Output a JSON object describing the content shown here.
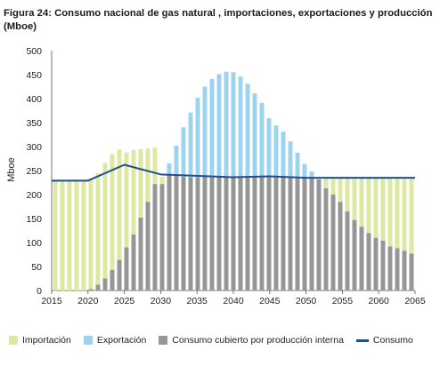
{
  "title": "Figura 24: Consumo nacional de gas natural , importaciones, exportaciones y producción (Mboe)",
  "chart_data": {
    "type": "bar",
    "title": "Figura 24: Consumo nacional de gas natural , importaciones, exportaciones y producción (Mboe)",
    "xlabel": "",
    "ylabel": "Mboe",
    "ylim": [
      0,
      500
    ],
    "xlim": [
      2015,
      2065
    ],
    "yticks": [
      0,
      50,
      100,
      150,
      200,
      250,
      300,
      350,
      400,
      450,
      500
    ],
    "xticks": [
      2015,
      2020,
      2025,
      2030,
      2035,
      2040,
      2045,
      2050,
      2055,
      2060,
      2065
    ],
    "grid": false,
    "legend_position": "bottom",
    "x": [
      2015,
      2016,
      2017,
      2018,
      2019,
      2020,
      2021,
      2022,
      2023,
      2024,
      2025,
      2026,
      2027,
      2028,
      2029,
      2030,
      2031,
      2032,
      2033,
      2034,
      2035,
      2036,
      2037,
      2038,
      2039,
      2040,
      2041,
      2042,
      2043,
      2044,
      2045,
      2046,
      2047,
      2048,
      2049,
      2050,
      2051,
      2052,
      2053,
      2054,
      2055,
      2056,
      2057,
      2058,
      2059,
      2060,
      2061,
      2062,
      2063,
      2064,
      2065
    ],
    "series": [
      {
        "name": "Importación",
        "color": "#dde8a3",
        "values": [
          229,
          229,
          229,
          229,
          229,
          229,
          232,
          241,
          241,
          230,
          198,
          176,
          143,
          111,
          76,
          15,
          0,
          0,
          0,
          0,
          0,
          0,
          0,
          0,
          0,
          0,
          0,
          0,
          0,
          0,
          0,
          0,
          0,
          0,
          0,
          0,
          0,
          0,
          21,
          33,
          50,
          70,
          88,
          101,
          115,
          124,
          130,
          142,
          146,
          151,
          157
        ]
      },
      {
        "name": "Exportación",
        "color": "#9dd3ee",
        "values": [
          0,
          0,
          0,
          0,
          0,
          0,
          0,
          0,
          0,
          0,
          0,
          0,
          0,
          0,
          0,
          0,
          25,
          63,
          103,
          135,
          166,
          188,
          205,
          215,
          220,
          219,
          210,
          195,
          175,
          155,
          123,
          108,
          95,
          75,
          51,
          28,
          12,
          0,
          0,
          0,
          0,
          0,
          0,
          0,
          0,
          0,
          0,
          0,
          0,
          0,
          0
        ]
      },
      {
        "name": "Consumo cubierto por producción interna",
        "color": "#969696",
        "values": [
          0,
          0,
          0,
          0,
          0,
          3,
          12,
          25,
          43,
          64,
          90,
          117,
          152,
          185,
          222,
          222,
          240,
          239,
          237,
          236,
          236,
          237,
          236,
          236,
          236,
          236,
          236,
          236,
          236,
          236,
          236,
          236,
          236,
          236,
          236,
          236,
          236,
          232,
          213,
          200,
          185,
          165,
          147,
          133,
          120,
          110,
          104,
          92,
          88,
          83,
          77
        ]
      },
      {
        "name": "Consumo",
        "color": "#1f4e8c",
        "type": "line",
        "points": [
          [
            2015,
            229
          ],
          [
            2020,
            229
          ],
          [
            2025,
            262
          ],
          [
            2030,
            242
          ],
          [
            2040,
            236
          ],
          [
            2045,
            238
          ],
          [
            2050,
            235
          ],
          [
            2065,
            235
          ]
        ]
      }
    ]
  }
}
